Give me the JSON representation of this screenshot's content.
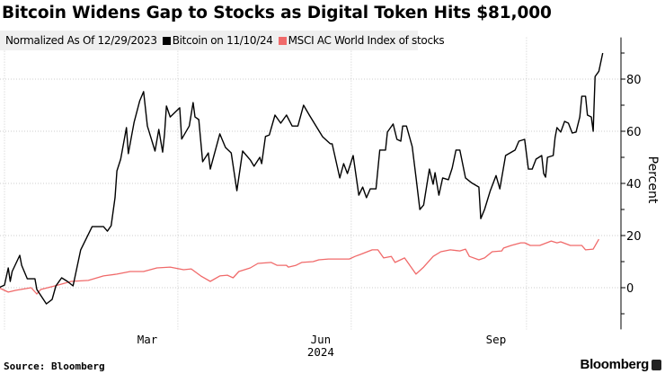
{
  "title": "Bitcoin Widens Gap to Stocks as Digital Token Hits $81,000",
  "legend": {
    "note": "Normalized As Of 12/29/2023",
    "items": [
      {
        "label": "Bitcoin on 11/10/24",
        "color": "#000000"
      },
      {
        "label": "MSCI AC World Index of stocks",
        "color": "#f06a6a"
      }
    ]
  },
  "source": "Source: Bloomberg",
  "brand": "Bloomberg",
  "chart_data": {
    "type": "line",
    "title": "Bitcoin Widens Gap to Stocks as Digital Token Hits $81,000",
    "ylabel": "Percent",
    "xlabel": "2024",
    "y_axis_side": "right",
    "ylim": [
      -16,
      96
    ],
    "yticks": [
      0,
      20,
      40,
      60,
      80
    ],
    "xtick_labels": [
      "Mar",
      "Jun",
      "Sep"
    ],
    "xtick_dates": [
      "2024-03-16",
      "2024-06-15",
      "2024-09-15"
    ],
    "x_gridlines": [
      "2024-01-01",
      "2024-04-01",
      "2024-07-01",
      "2024-10-01"
    ],
    "year_label": "2024",
    "grid": true,
    "legend_position": "top-left",
    "series": [
      {
        "name": "Bitcoin on 11/10/24",
        "color": "#000000",
        "points": [
          [
            "2023-12-29",
            0
          ],
          [
            "2024-01-01",
            1
          ],
          [
            "2024-01-03",
            7.6
          ],
          [
            "2024-01-04",
            2.4
          ],
          [
            "2024-01-05",
            6.2
          ],
          [
            "2024-01-09",
            12.4
          ],
          [
            "2024-01-10",
            8.6
          ],
          [
            "2024-01-13",
            3.4
          ],
          [
            "2024-01-17",
            3.4
          ],
          [
            "2024-01-18",
            -0.7
          ],
          [
            "2024-01-23",
            -6.2
          ],
          [
            "2024-01-26",
            -4.5
          ],
          [
            "2024-01-28",
            0.7
          ],
          [
            "2024-01-31",
            3.8
          ],
          [
            "2024-02-03",
            2.4
          ],
          [
            "2024-02-06",
            0.7
          ],
          [
            "2024-02-10",
            14.5
          ],
          [
            "2024-02-13",
            19
          ],
          [
            "2024-02-16",
            23.4
          ],
          [
            "2024-02-22",
            23.4
          ],
          [
            "2024-02-24",
            21.7
          ],
          [
            "2024-02-26",
            23.8
          ],
          [
            "2024-02-28",
            34.5
          ],
          [
            "2024-02-29",
            44.8
          ],
          [
            "2024-03-02",
            49.3
          ],
          [
            "2024-03-05",
            61.4
          ],
          [
            "2024-03-06",
            51.4
          ],
          [
            "2024-03-08",
            59.3
          ],
          [
            "2024-03-09",
            63.4
          ],
          [
            "2024-03-12",
            71.7
          ],
          [
            "2024-03-14",
            75.2
          ],
          [
            "2024-03-16",
            62
          ],
          [
            "2024-03-20",
            52.4
          ],
          [
            "2024-03-22",
            60.7
          ],
          [
            "2024-03-24",
            52
          ],
          [
            "2024-03-25",
            59
          ],
          [
            "2024-03-26",
            69.7
          ],
          [
            "2024-03-28",
            65.5
          ],
          [
            "2024-04-02",
            69
          ],
          [
            "2024-04-03",
            57
          ],
          [
            "2024-04-07",
            62
          ],
          [
            "2024-04-09",
            71
          ],
          [
            "2024-04-10",
            65.5
          ],
          [
            "2024-04-12",
            64.5
          ],
          [
            "2024-04-14",
            48.3
          ],
          [
            "2024-04-17",
            51.7
          ],
          [
            "2024-04-18",
            45.5
          ],
          [
            "2024-04-23",
            59
          ],
          [
            "2024-04-26",
            53.8
          ],
          [
            "2024-04-29",
            51.7
          ],
          [
            "2024-05-02",
            37.2
          ],
          [
            "2024-05-05",
            52.4
          ],
          [
            "2024-05-09",
            49
          ],
          [
            "2024-05-11",
            46.6
          ],
          [
            "2024-05-14",
            50
          ],
          [
            "2024-05-15",
            47.6
          ],
          [
            "2024-05-17",
            58
          ],
          [
            "2024-05-19",
            58.6
          ],
          [
            "2024-05-22",
            66.2
          ],
          [
            "2024-05-25",
            63.1
          ],
          [
            "2024-05-28",
            66.2
          ],
          [
            "2024-05-31",
            62
          ],
          [
            "2024-06-03",
            62
          ],
          [
            "2024-06-06",
            70
          ],
          [
            "2024-06-09",
            66.2
          ],
          [
            "2024-06-13",
            61.4
          ],
          [
            "2024-06-16",
            57.9
          ],
          [
            "2024-06-20",
            55.2
          ],
          [
            "2024-06-21",
            55.2
          ],
          [
            "2024-06-25",
            42.1
          ],
          [
            "2024-06-27",
            47.6
          ],
          [
            "2024-06-29",
            43.8
          ],
          [
            "2024-07-02",
            50.7
          ],
          [
            "2024-07-05",
            35.5
          ],
          [
            "2024-07-07",
            38.6
          ],
          [
            "2024-07-09",
            34.5
          ],
          [
            "2024-07-11",
            37.9
          ],
          [
            "2024-07-14",
            37.9
          ],
          [
            "2024-07-16",
            52.8
          ],
          [
            "2024-07-19",
            52.8
          ],
          [
            "2024-07-20",
            59.7
          ],
          [
            "2024-07-23",
            62.8
          ],
          [
            "2024-07-25",
            56.9
          ],
          [
            "2024-07-27",
            56.2
          ],
          [
            "2024-07-28",
            62
          ],
          [
            "2024-07-30",
            62
          ],
          [
            "2024-08-02",
            54.1
          ],
          [
            "2024-08-04",
            42.4
          ],
          [
            "2024-08-06",
            30
          ],
          [
            "2024-08-08",
            31.7
          ],
          [
            "2024-08-11",
            45.5
          ],
          [
            "2024-08-13",
            39.7
          ],
          [
            "2024-08-14",
            44.1
          ],
          [
            "2024-08-16",
            35.5
          ],
          [
            "2024-08-18",
            42.1
          ],
          [
            "2024-08-21",
            41.4
          ],
          [
            "2024-08-23",
            45.9
          ],
          [
            "2024-08-25",
            52.8
          ],
          [
            "2024-08-27",
            52.8
          ],
          [
            "2024-08-30",
            42.1
          ],
          [
            "2024-09-02",
            40.3
          ],
          [
            "2024-09-06",
            38.6
          ],
          [
            "2024-09-07",
            26.5
          ],
          [
            "2024-09-09",
            30
          ],
          [
            "2024-09-12",
            37.2
          ],
          [
            "2024-09-15",
            43
          ],
          [
            "2024-09-17",
            37.9
          ],
          [
            "2024-09-20",
            50.7
          ],
          [
            "2024-09-25",
            52.8
          ],
          [
            "2024-09-27",
            56.2
          ],
          [
            "2024-09-30",
            56.9
          ],
          [
            "2024-10-02",
            45.5
          ],
          [
            "2024-10-04",
            45.5
          ],
          [
            "2024-10-06",
            49.3
          ],
          [
            "2024-10-09",
            50.7
          ],
          [
            "2024-10-10",
            43.8
          ],
          [
            "2024-10-11",
            42.4
          ],
          [
            "2024-10-12",
            50
          ],
          [
            "2024-10-15",
            50.7
          ],
          [
            "2024-10-16",
            57.6
          ],
          [
            "2024-10-17",
            61.4
          ],
          [
            "2024-10-19",
            59.7
          ],
          [
            "2024-10-21",
            63.8
          ],
          [
            "2024-10-23",
            63.1
          ],
          [
            "2024-10-25",
            59.3
          ],
          [
            "2024-10-27",
            59.7
          ],
          [
            "2024-10-29",
            65.5
          ],
          [
            "2024-10-30",
            73.4
          ],
          [
            "2024-11-01",
            73.4
          ],
          [
            "2024-11-02",
            66.2
          ],
          [
            "2024-11-04",
            65.5
          ],
          [
            "2024-11-05",
            60
          ],
          [
            "2024-11-06",
            81
          ],
          [
            "2024-11-08",
            83
          ],
          [
            "2024-11-10",
            90
          ]
        ]
      },
      {
        "name": "MSCI AC World Index of stocks",
        "color": "#f06a6a",
        "points": [
          [
            "2023-12-29",
            0
          ],
          [
            "2024-01-03",
            -1.7
          ],
          [
            "2024-01-07",
            -1
          ],
          [
            "2024-01-15",
            0
          ],
          [
            "2024-01-18",
            -2.4
          ],
          [
            "2024-01-20",
            -0.7
          ],
          [
            "2024-01-29",
            1
          ],
          [
            "2024-02-05",
            2.4
          ],
          [
            "2024-02-14",
            2.8
          ],
          [
            "2024-02-22",
            4.5
          ],
          [
            "2024-02-29",
            5.2
          ],
          [
            "2024-03-07",
            6.2
          ],
          [
            "2024-03-14",
            6.2
          ],
          [
            "2024-03-21",
            7.6
          ],
          [
            "2024-03-28",
            7.9
          ],
          [
            "2024-04-04",
            6.9
          ],
          [
            "2024-04-08",
            7.2
          ],
          [
            "2024-04-13",
            4.5
          ],
          [
            "2024-04-18",
            2.4
          ],
          [
            "2024-04-23",
            4.5
          ],
          [
            "2024-04-27",
            4.8
          ],
          [
            "2024-04-30",
            3.8
          ],
          [
            "2024-05-03",
            6.2
          ],
          [
            "2024-05-09",
            7.6
          ],
          [
            "2024-05-13",
            9.3
          ],
          [
            "2024-05-20",
            9.7
          ],
          [
            "2024-05-23",
            8.6
          ],
          [
            "2024-05-28",
            8.6
          ],
          [
            "2024-05-29",
            7.9
          ],
          [
            "2024-06-02",
            8.6
          ],
          [
            "2024-06-05",
            9.7
          ],
          [
            "2024-06-11",
            10
          ],
          [
            "2024-06-14",
            10.7
          ],
          [
            "2024-06-19",
            11
          ],
          [
            "2024-06-30",
            11
          ],
          [
            "2024-07-03",
            12
          ],
          [
            "2024-07-06",
            12.8
          ],
          [
            "2024-07-12",
            14.5
          ],
          [
            "2024-07-15",
            14.5
          ],
          [
            "2024-07-18",
            11.4
          ],
          [
            "2024-07-22",
            12
          ],
          [
            "2024-07-24",
            9.7
          ],
          [
            "2024-07-29",
            11.4
          ],
          [
            "2024-08-04",
            5.2
          ],
          [
            "2024-08-08",
            7.9
          ],
          [
            "2024-08-13",
            12
          ],
          [
            "2024-08-17",
            13.8
          ],
          [
            "2024-08-22",
            14.5
          ],
          [
            "2024-08-27",
            14.1
          ],
          [
            "2024-08-30",
            14.8
          ],
          [
            "2024-09-01",
            12
          ],
          [
            "2024-09-06",
            10.7
          ],
          [
            "2024-09-09",
            11.4
          ],
          [
            "2024-09-13",
            13.8
          ],
          [
            "2024-09-18",
            14.1
          ],
          [
            "2024-09-19",
            15.2
          ],
          [
            "2024-09-23",
            16.2
          ],
          [
            "2024-09-28",
            17.2
          ],
          [
            "2024-09-30",
            17.2
          ],
          [
            "2024-10-03",
            16.2
          ],
          [
            "2024-10-08",
            16.2
          ],
          [
            "2024-10-14",
            17.9
          ],
          [
            "2024-10-17",
            17.2
          ],
          [
            "2024-10-19",
            17.6
          ],
          [
            "2024-10-24",
            16.2
          ],
          [
            "2024-10-30",
            16.2
          ],
          [
            "2024-11-01",
            14.5
          ],
          [
            "2024-11-05",
            14.8
          ],
          [
            "2024-11-08",
            18.6
          ]
        ]
      }
    ]
  }
}
